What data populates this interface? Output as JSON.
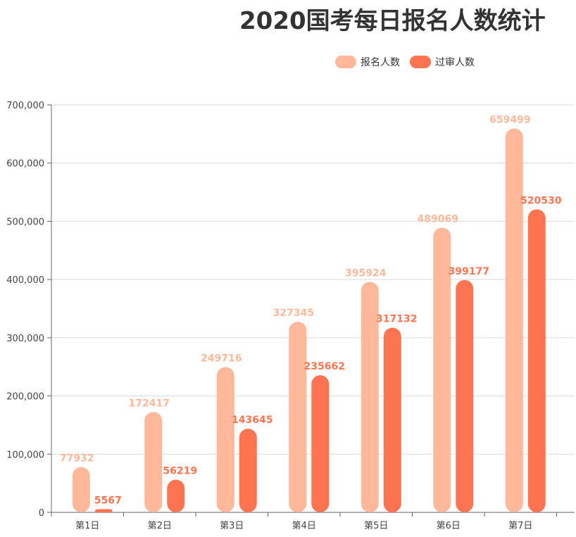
{
  "chart_data": {
    "type": "bar",
    "title": "2020国考每日报名人数统计",
    "categories": [
      "第1日",
      "第2日",
      "第3日",
      "第4日",
      "第5日",
      "第6日",
      "第7日"
    ],
    "series": [
      {
        "name": "报名人数",
        "color": "#FFB89A",
        "values": [
          77932,
          172417,
          249716,
          327345,
          395924,
          489069,
          659499
        ]
      },
      {
        "name": "过审人数",
        "color": "#FF7450",
        "values": [
          5567,
          56219,
          143645,
          235662,
          317132,
          399177,
          520530
        ]
      }
    ],
    "y_ticks": [
      "0",
      "100,000",
      "200,000",
      "300,000",
      "400,000",
      "500,000",
      "600,000",
      "700,000"
    ],
    "ylim": [
      0,
      700000
    ],
    "grid": true,
    "legend_position": "top-right"
  }
}
